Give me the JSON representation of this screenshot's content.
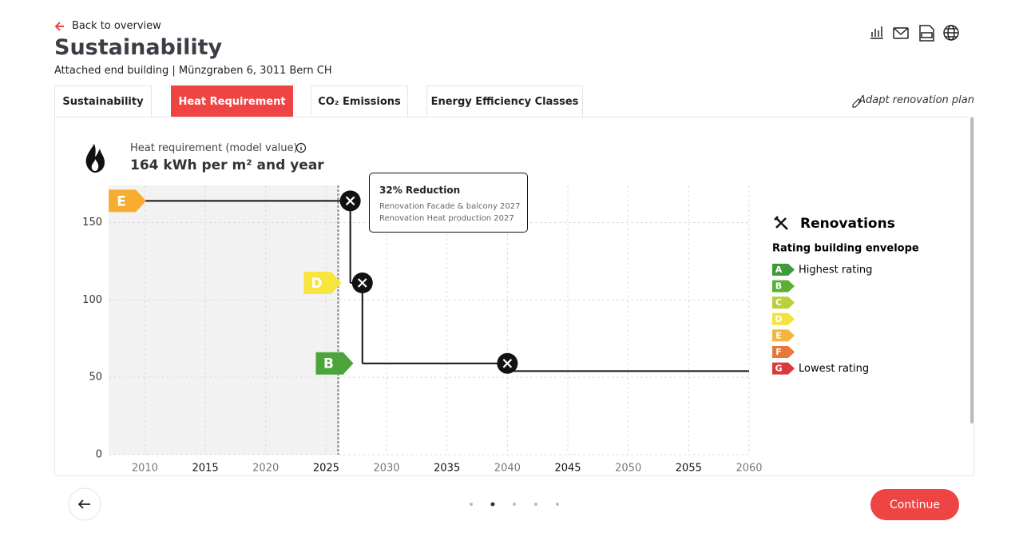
{
  "header": {
    "back": "Back to overview",
    "title": "Sustainability",
    "subtitle": "Attached end building | Münzgraben 6, 3011 Bern CH"
  },
  "tabs": {
    "items": [
      "Sustainability",
      "Heat Requirement",
      "CO₂ Emissions",
      "Energy Efficiency Classes"
    ],
    "active": 1
  },
  "adapt": "Adapt renovation plan",
  "metric": {
    "label": "Heat requirement (model value)",
    "value": "164 kWh per m² and year"
  },
  "chart_data": {
    "type": "step",
    "series": [
      {
        "x": [
          2007,
          2027,
          2028,
          2040,
          2060
        ],
        "values": [
          164,
          111,
          59,
          54,
          54
        ],
        "color": "#111111"
      }
    ],
    "markers": {
      "x": [
        2027,
        2028,
        2040
      ],
      "values": [
        164,
        111,
        59
      ]
    },
    "badges": [
      {
        "label": "E",
        "value": 164,
        "color": "#f7ad2f"
      },
      {
        "label": "D",
        "value": 111,
        "color": "#f7e43c"
      },
      {
        "label": "B",
        "value": 59,
        "color": "#4ba53a"
      }
    ],
    "today": 2026,
    "tooltip": {
      "title": "32% Reduction",
      "lines": [
        "Renovation Facade & balcony 2027",
        "Renovation Heat production 2027"
      ]
    },
    "xlim": [
      2007,
      2060
    ],
    "xticks": [
      2010,
      2015,
      2020,
      2025,
      2030,
      2035,
      2040,
      2045,
      2050,
      2055,
      2060
    ],
    "ylim": [
      0,
      174
    ],
    "yticks": [
      0,
      50,
      100,
      150
    ],
    "grid": true
  },
  "legend": {
    "title": "Renovations",
    "subtitle": "Rating building envelope",
    "classes": [
      {
        "label": "A",
        "color": "#3d9a3d"
      },
      {
        "label": "B",
        "color": "#5bb033"
      },
      {
        "label": "C",
        "color": "#b9cf3c"
      },
      {
        "label": "D",
        "color": "#f3e23f"
      },
      {
        "label": "E",
        "color": "#f5b440"
      },
      {
        "label": "F",
        "color": "#e9773a"
      },
      {
        "label": "G",
        "color": "#d93a3a"
      }
    ],
    "highest": "Highest rating",
    "lowest": "Lowest rating"
  },
  "pagination": {
    "pages": 5,
    "current": 1
  },
  "continue": "Continue"
}
